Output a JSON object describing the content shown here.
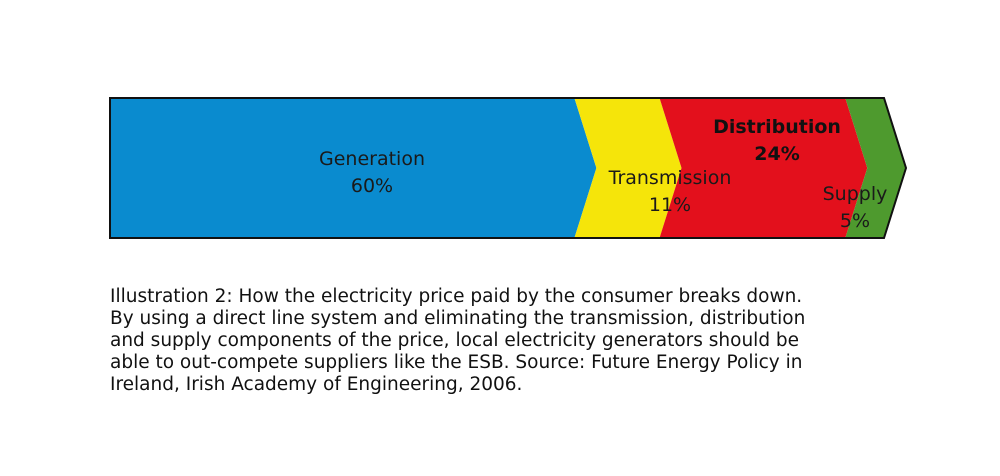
{
  "chart_data": {
    "type": "bar",
    "orientation": "horizontal-stacked-arrow",
    "categories": [
      "Generation",
      "Transmission",
      "Distribution",
      "Supply"
    ],
    "values": [
      60,
      11,
      24,
      5
    ],
    "value_labels": [
      "60%",
      "11%",
      "24%",
      "5%"
    ],
    "colors": [
      "#0a8bcf",
      "#f5e50a",
      "#e3101c",
      "#4e9a2e"
    ],
    "unit": "%"
  },
  "caption": {
    "lines": [
      "Illustration 2: How the electricity price paid by the consumer breaks down.",
      "By using a direct line system and eliminating the transmission, distribution",
      "and supply components of the price, local electricity generators should be",
      "able to out-compete suppliers like the ESB. Source: Future Energy Policy in",
      "Ireland, Irish Academy of Engineering, 2006."
    ]
  }
}
